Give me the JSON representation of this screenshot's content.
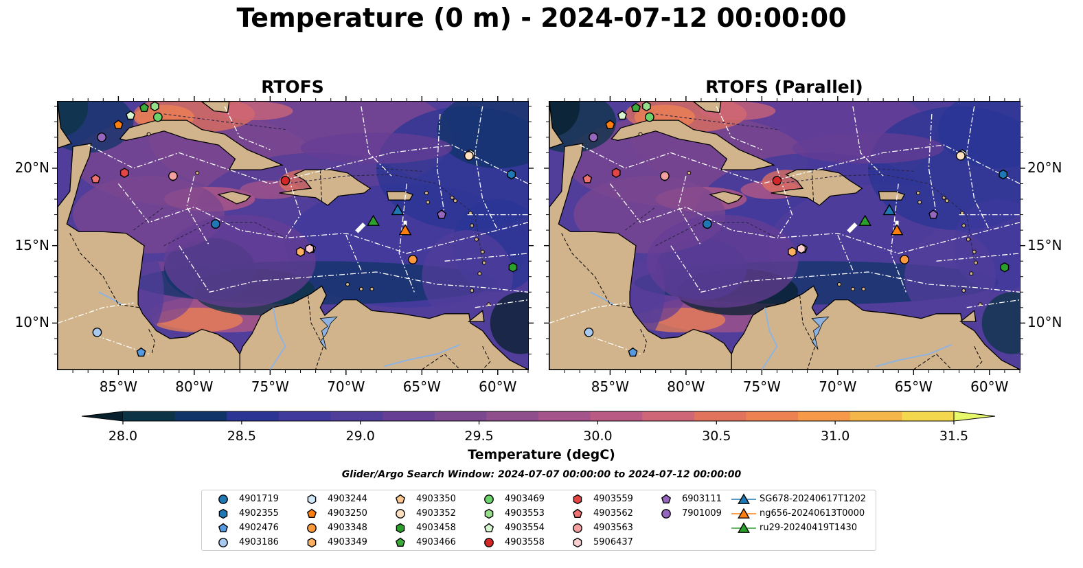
{
  "figure_title": "Temperature (0 m) - 2024-07-12 00:00:00",
  "panels": [
    {
      "title": "RTOFS"
    },
    {
      "title": "RTOFS (Parallel)"
    }
  ],
  "axes": {
    "longitude_labels": [
      "85°W",
      "80°W",
      "75°W",
      "70°W",
      "65°W",
      "60°W"
    ],
    "longitude_values": [
      -85,
      -80,
      -75,
      -70,
      -65,
      -60
    ],
    "latitude_labels": [
      "20°N",
      "15°N",
      "10°N"
    ],
    "latitude_values": [
      20,
      15,
      10
    ],
    "extent": {
      "lon": [
        -89,
        -58
      ],
      "lat": [
        7,
        24.3
      ]
    }
  },
  "colorbar": {
    "label": "Temperature (degC)",
    "min": 28.0,
    "max": 31.5,
    "step": 0.25,
    "tick_labels": [
      "28.0",
      "28.5",
      "29.0",
      "29.5",
      "30.0",
      "30.5",
      "31.0",
      "31.5"
    ],
    "tick_values": [
      28.0,
      28.5,
      29.0,
      29.5,
      30.0,
      30.5,
      31.0,
      31.5
    ],
    "colors": [
      "#0c3446",
      "#113468",
      "#2a3594",
      "#3f3a9c",
      "#513e9a",
      "#663e94",
      "#7b478f",
      "#8e4f8c",
      "#a4548a",
      "#b85a84",
      "#cf6677",
      "#e1725c",
      "#ee8152",
      "#f69a4a",
      "#f5b649",
      "#f3d84e"
    ],
    "under_color": "#08202e",
    "over_color": "#e7f86a"
  },
  "search_window": "Glider/Argo Search Window: 2024-07-07 00:00:00 to 2024-07-12 00:00:00",
  "legend": [
    {
      "label": "4901719",
      "marker": "circle",
      "color": "#1f77b4",
      "lon": -78.6,
      "lat": 16.4
    },
    {
      "label": "4902355",
      "marker": "hexagon",
      "color": "#1f77b4",
      "lon": -59.1,
      "lat": 19.6
    },
    {
      "label": "4902476",
      "marker": "pentagon",
      "color": "#5599e0",
      "lon": -83.5,
      "lat": 8.1
    },
    {
      "label": "4903186",
      "marker": "circle",
      "color": "#a8c8ee",
      "lon": -86.4,
      "lat": 9.4
    },
    {
      "label": "4903244",
      "marker": "hexagon",
      "color": "#d0e8f8",
      "lon": -61.8,
      "lat": 20.9
    },
    {
      "label": "4903250",
      "marker": "pentagon",
      "color": "#ff7f0e",
      "lon": -85.0,
      "lat": 22.8
    },
    {
      "label": "4903348",
      "marker": "circle",
      "color": "#ff9a3c",
      "lon": -65.6,
      "lat": 14.1
    },
    {
      "label": "4903349",
      "marker": "hexagon",
      "color": "#ffb060",
      "lon": -73.0,
      "lat": 14.6
    },
    {
      "label": "4903350",
      "marker": "pentagon",
      "color": "#ffc890",
      "lon": -72.3,
      "lat": 14.8
    },
    {
      "label": "4903352",
      "marker": "circle",
      "color": "#ffe0c0",
      "lon": -61.9,
      "lat": 20.8
    },
    {
      "label": "4903458",
      "marker": "hexagon",
      "color": "#2ca02c",
      "lon": -59.0,
      "lat": 13.6
    },
    {
      "label": "4903466",
      "marker": "pentagon",
      "color": "#3aaa3a",
      "lon": -83.3,
      "lat": 23.9
    },
    {
      "label": "4903469",
      "marker": "circle",
      "color": "#6cd26c",
      "lon": -82.4,
      "lat": 23.3
    },
    {
      "label": "4903553",
      "marker": "hexagon",
      "color": "#98df8a",
      "lon": -82.6,
      "lat": 24.0
    },
    {
      "label": "4903554",
      "marker": "pentagon",
      "color": "#d6f5d0",
      "lon": -84.2,
      "lat": 23.4
    },
    {
      "label": "4903558",
      "marker": "circle",
      "color": "#d62728",
      "lon": -74.0,
      "lat": 19.2
    },
    {
      "label": "4903559",
      "marker": "hexagon",
      "color": "#e64545",
      "lon": -84.6,
      "lat": 19.7
    },
    {
      "label": "4903562",
      "marker": "pentagon",
      "color": "#ee7070",
      "lon": -86.5,
      "lat": 19.3
    },
    {
      "label": "4903563",
      "marker": "circle",
      "color": "#f4a0a0",
      "lon": -81.4,
      "lat": 19.5
    },
    {
      "label": "5906437",
      "marker": "hexagon",
      "color": "#fcd0d0",
      "lon": -72.4,
      "lat": 14.8
    },
    {
      "label": "6903111",
      "marker": "pentagon",
      "color": "#9467bd",
      "lon": -63.7,
      "lat": 17.0
    },
    {
      "label": "7901009",
      "marker": "circle",
      "color": "#9467bd",
      "lon": -86.1,
      "lat": 22.0
    },
    {
      "label": "SG678-20240617T1202",
      "marker": "triangle",
      "color": "#1f77b4",
      "lon": -66.6,
      "lat": 17.3,
      "track": true
    },
    {
      "label": "ng656-20240613T0000",
      "marker": "triangle",
      "color": "#ff7f0e",
      "lon": -66.1,
      "lat": 16.0,
      "track": true
    },
    {
      "label": "ru29-20240419T1430",
      "marker": "triangle",
      "color": "#2ca02c",
      "lon": -68.2,
      "lat": 16.6,
      "track": true
    }
  ]
}
